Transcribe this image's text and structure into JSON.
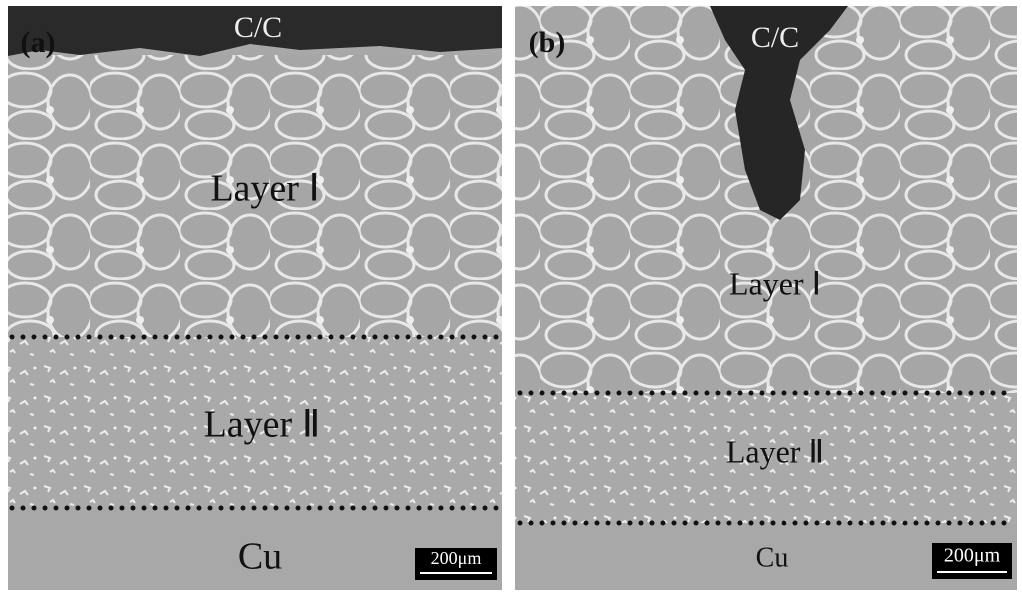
{
  "panels": [
    {
      "label": "(a)",
      "top": "C/C",
      "layer1": "Layer Ⅰ",
      "layer2": "Layer Ⅱ",
      "bottom": "Cu",
      "scale_bar": "200μm"
    },
    {
      "label": "(b)",
      "top": "C/C",
      "layer1": "Layer Ⅰ",
      "layer2": "Layer Ⅱ",
      "bottom": "Cu",
      "scale_bar": "200μm"
    }
  ]
}
